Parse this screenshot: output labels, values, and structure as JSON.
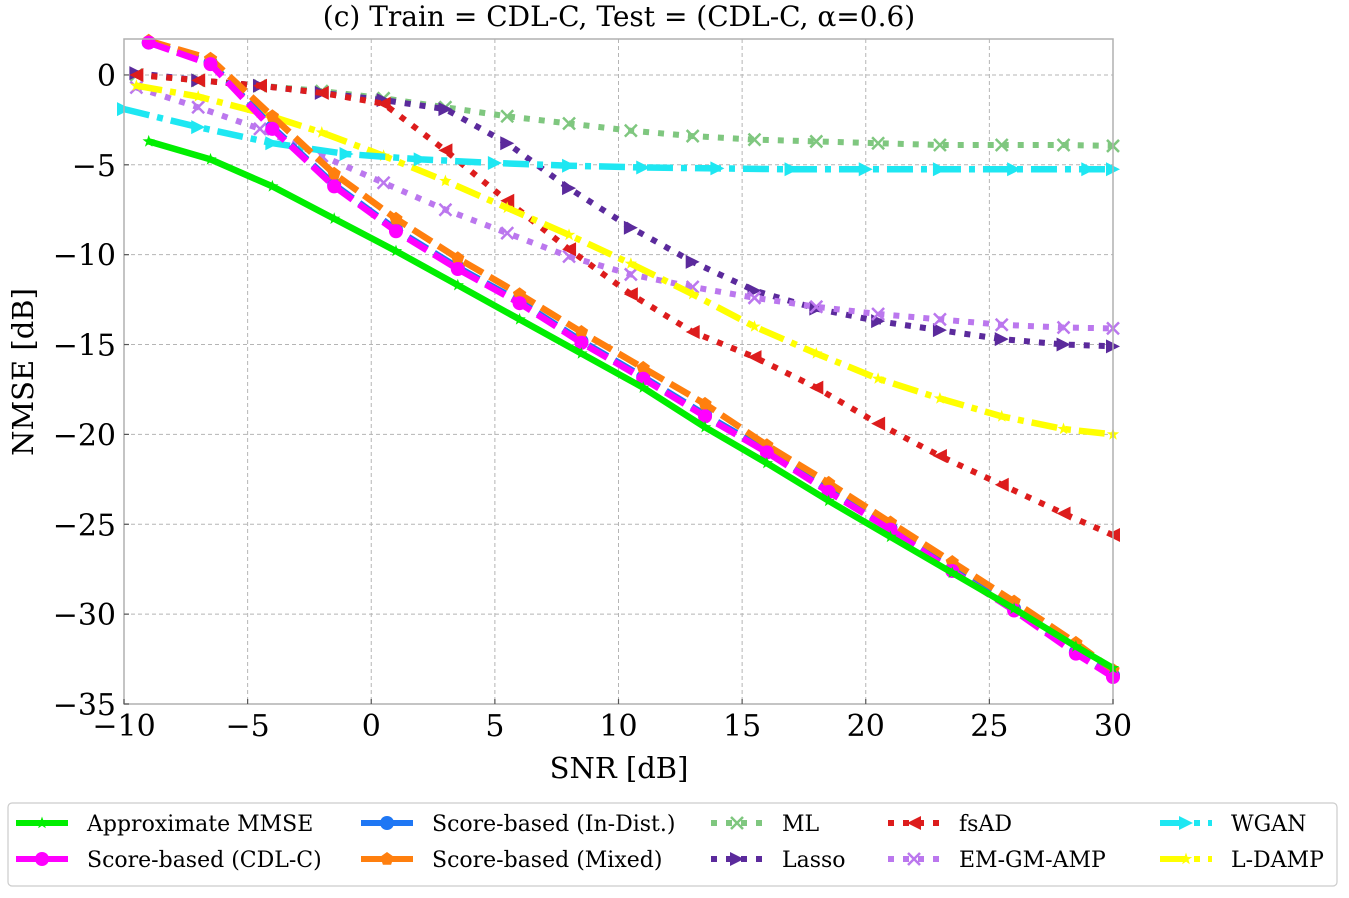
{
  "chart_data": {
    "type": "line",
    "title": "(c) Train = CDL-C, Test = (CDL-C, α=0.6)",
    "xlabel": "SNR [dB]",
    "ylabel": "NMSE [dB]",
    "xlim": [
      -10,
      30
    ],
    "ylim": [
      -35,
      2
    ],
    "xticks": [
      -10,
      -5,
      0,
      5,
      10,
      15,
      20,
      25,
      30
    ],
    "yticks": [
      0,
      -5,
      -10,
      -15,
      -20,
      -25,
      -30,
      -35
    ],
    "xtick_labels": [
      "−10",
      "−5",
      "0",
      "5",
      "10",
      "15",
      "20",
      "25",
      "30"
    ],
    "ytick_labels": [
      "0",
      "−5",
      "−10",
      "−15",
      "−20",
      "−25",
      "−30",
      "−35"
    ],
    "grid": true,
    "legend_position": "bottom",
    "series": [
      {
        "name": "Approximate MMSE",
        "color": "#00ee00",
        "dash": "solid",
        "marker": "star",
        "x": [
          -9,
          -6.5,
          -4,
          -1.5,
          1,
          3.5,
          6,
          8.5,
          11,
          13.5,
          16,
          18.5,
          21,
          23.5,
          26,
          28.5,
          30
        ],
        "y": [
          -3.7,
          -4.7,
          -6.2,
          -8,
          -9.8,
          -11.7,
          -13.6,
          -15.5,
          -17.4,
          -19.6,
          -21.6,
          -23.7,
          -25.7,
          -27.7,
          -29.7,
          -31.8,
          -33
        ]
      },
      {
        "name": "Score-based (In-Dist.)",
        "color": "#1f77f4",
        "dash": "dashed",
        "marker": "circle",
        "x": [
          -9,
          -6.5,
          -4,
          -1.5,
          1,
          3.5,
          6,
          8.5,
          11,
          13.5,
          16,
          18.5,
          21,
          23.5,
          26,
          28.5,
          30
        ],
        "y": [
          1.8,
          0.7,
          -2.9,
          -6.1,
          -8.6,
          -10.7,
          -12.6,
          -14.8,
          -16.8,
          -18.9,
          -20.9,
          -23.1,
          -25.2,
          -27.5,
          -29.7,
          -32.1,
          -33.4
        ]
      },
      {
        "name": "Score-based (CDL-C)",
        "color": "#ff00ff",
        "dash": "dashed",
        "marker": "circle",
        "x": [
          -9,
          -6.5,
          -4,
          -1.5,
          1,
          3.5,
          6,
          8.5,
          11,
          13.5,
          16,
          18.5,
          21,
          23.5,
          26,
          28.5,
          30
        ],
        "y": [
          1.8,
          0.6,
          -3,
          -6.2,
          -8.7,
          -10.8,
          -12.7,
          -14.9,
          -16.9,
          -19,
          -21,
          -23.2,
          -25.3,
          -27.6,
          -29.8,
          -32.2,
          -33.5
        ]
      },
      {
        "name": "Score-based (Mixed)",
        "color": "#ff7f0e",
        "dash": "dashed",
        "marker": "pentagon",
        "x": [
          -9,
          -6.5,
          -4,
          -1.5,
          1,
          3.5,
          6,
          8.5,
          11,
          13.5,
          16,
          18.5,
          21,
          23.5,
          26,
          28.5,
          30
        ],
        "y": [
          1.9,
          0.9,
          -2.3,
          -5.5,
          -8,
          -10.2,
          -12.2,
          -14.3,
          -16.3,
          -18.3,
          -20.6,
          -22.7,
          -24.9,
          -27.1,
          -29.3,
          -31.6,
          -33.1
        ]
      },
      {
        "name": "ML",
        "color": "#7fc77f",
        "dash": "dotted",
        "marker": "x",
        "x": [
          -9.5,
          -7,
          -4.5,
          -2,
          0.5,
          3,
          5.5,
          8,
          10.5,
          13,
          15.5,
          18,
          20.5,
          23,
          25.5,
          28,
          30
        ],
        "y": [
          0,
          -0.3,
          -0.6,
          -0.9,
          -1.3,
          -1.8,
          -2.3,
          -2.7,
          -3.1,
          -3.4,
          -3.6,
          -3.7,
          -3.8,
          -3.9,
          -3.9,
          -3.9,
          -3.95
        ]
      },
      {
        "name": "Lasso",
        "color": "#5b2a9c",
        "dash": "dotted",
        "marker": "triangle-right",
        "x": [
          -9.5,
          -7,
          -4.5,
          -2,
          0.5,
          3,
          5.5,
          8,
          10.5,
          13,
          15.5,
          18,
          20.5,
          23,
          25.5,
          28,
          30
        ],
        "y": [
          0.1,
          -0.3,
          -0.6,
          -1,
          -1.4,
          -1.9,
          -3.8,
          -6.3,
          -8.5,
          -10.4,
          -12,
          -13,
          -13.7,
          -14.2,
          -14.7,
          -15,
          -15.1
        ]
      },
      {
        "name": "fsAD",
        "color": "#dd1c1c",
        "dash": "dotted",
        "marker": "triangle-left",
        "x": [
          -9.5,
          -7,
          -4.5,
          -2,
          0.5,
          3,
          5.5,
          8,
          10.5,
          13,
          15.5,
          18,
          20.5,
          23,
          25.5,
          28,
          30
        ],
        "y": [
          0,
          -0.3,
          -0.6,
          -1,
          -1.6,
          -4.2,
          -7,
          -9.7,
          -12.2,
          -14.3,
          -15.7,
          -17.4,
          -19.4,
          -21.2,
          -22.8,
          -24.4,
          -25.6
        ]
      },
      {
        "name": "EM-GM-AMP",
        "color": "#bb77ee",
        "dash": "dotted",
        "marker": "x",
        "x": [
          -9.5,
          -7,
          -4.5,
          -2,
          0.5,
          3,
          5.5,
          8,
          10.5,
          13,
          15.5,
          18,
          20.5,
          23,
          25.5,
          28,
          30
        ],
        "y": [
          -0.7,
          -1.8,
          -3,
          -4.5,
          -6,
          -7.5,
          -8.8,
          -10.1,
          -11.1,
          -11.8,
          -12.4,
          -12.9,
          -13.3,
          -13.6,
          -13.9,
          -14.05,
          -14.1
        ]
      },
      {
        "name": "WGAN",
        "color": "#1ee7f2",
        "dash": "dashdot",
        "marker": "triangle-right",
        "x": [
          -10,
          -7,
          -4,
          -1,
          2,
          5,
          8,
          11,
          14,
          17,
          20,
          23,
          26,
          29,
          30
        ],
        "y": [
          -1.9,
          -2.9,
          -3.8,
          -4.4,
          -4.7,
          -4.9,
          -5.05,
          -5.15,
          -5.2,
          -5.25,
          -5.25,
          -5.25,
          -5.25,
          -5.25,
          -5.25
        ]
      },
      {
        "name": "L-DAMP",
        "color": "#ffff00",
        "dash": "dashdot",
        "marker": "star",
        "x": [
          -9.5,
          -7,
          -4.5,
          -2,
          0.5,
          3,
          5.5,
          8,
          10.5,
          13,
          15.5,
          18,
          20.5,
          23,
          25.5,
          28,
          30
        ],
        "y": [
          -0.6,
          -1.2,
          -2.1,
          -3.2,
          -4.5,
          -5.9,
          -7.4,
          -8.9,
          -10.5,
          -12.2,
          -14,
          -15.5,
          -16.9,
          -18,
          -19,
          -19.7,
          -20
        ]
      }
    ]
  },
  "legend": {
    "columns": [
      [
        "Approximate MMSE",
        "Score-based (CDL-C)"
      ],
      [
        "Score-based (In-Dist.)",
        "Score-based (Mixed)"
      ],
      [
        "ML",
        "Lasso"
      ],
      [
        "fsAD",
        "EM-GM-AMP"
      ],
      [
        "WGAN",
        "L-DAMP"
      ]
    ]
  }
}
